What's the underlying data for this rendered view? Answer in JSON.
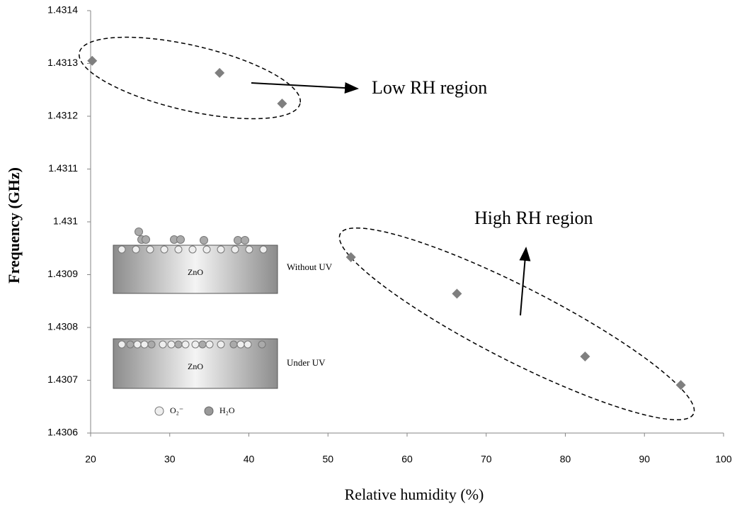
{
  "chart_data": {
    "type": "scatter",
    "xlabel": "Relative humidity (%)",
    "ylabel": "Frequency (GHz)",
    "x": [
      20.2,
      36.3,
      44.2,
      52.9,
      66.3,
      82.5,
      94.6
    ],
    "values": [
      1.431305,
      1.431282,
      1.431224,
      1.430933,
      1.430864,
      1.430745,
      1.430691
    ],
    "color": "#7f7f7f",
    "xlim": [
      20,
      100
    ],
    "xticks": [
      20,
      30,
      40,
      50,
      60,
      70,
      80,
      90,
      100
    ],
    "ylim": [
      1.4306,
      1.4314
    ],
    "yticks": [
      1.4306,
      1.4307,
      1.4308,
      1.4309,
      1.431,
      1.4311,
      1.4312,
      1.4313,
      1.4314
    ],
    "annotations": [
      "Low RH region",
      "High RH region"
    ],
    "inset": {
      "top_label": "Without UV",
      "top_slab": "ZnO",
      "bottom_label": "Under UV",
      "bottom_slab": "ZnO",
      "legend_o2": "O₂⁻",
      "legend_h2o": "H₂O"
    }
  }
}
